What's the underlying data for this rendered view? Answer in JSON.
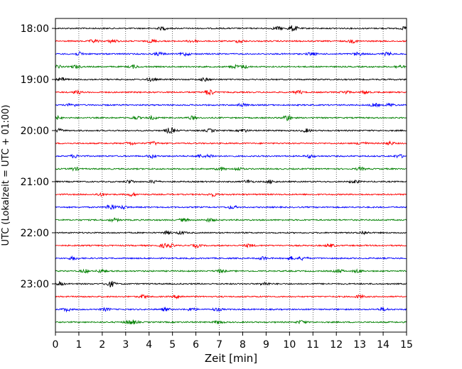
{
  "chart_data": {
    "type": "line",
    "title": "",
    "xlabel": "Zeit  [min]",
    "ylabel": "UTC (Lokalzeit = UTC + 01:00)",
    "xlim": [
      0,
      15
    ],
    "xticks": [
      0,
      1,
      2,
      3,
      4,
      5,
      6,
      7,
      8,
      9,
      10,
      11,
      12,
      13,
      14,
      15
    ],
    "yticks": [
      "18:00",
      "19:00",
      "20:00",
      "21:00",
      "22:00",
      "23:00"
    ],
    "grid": {
      "x": true,
      "y": false,
      "style": "dotted"
    },
    "trace_colors": [
      "#000000",
      "#ff0000",
      "#0000ff",
      "#008000"
    ],
    "traces_per_hour": 4,
    "trace_start_times": [
      "18:00",
      "18:15",
      "18:30",
      "18:45",
      "19:00",
      "19:15",
      "19:30",
      "19:45",
      "20:00",
      "20:15",
      "20:30",
      "20:45",
      "21:00",
      "21:15",
      "21:30",
      "21:45",
      "22:00",
      "22:15",
      "22:30",
      "22:45",
      "23:00",
      "23:15",
      "23:30",
      "23:45"
    ]
  }
}
